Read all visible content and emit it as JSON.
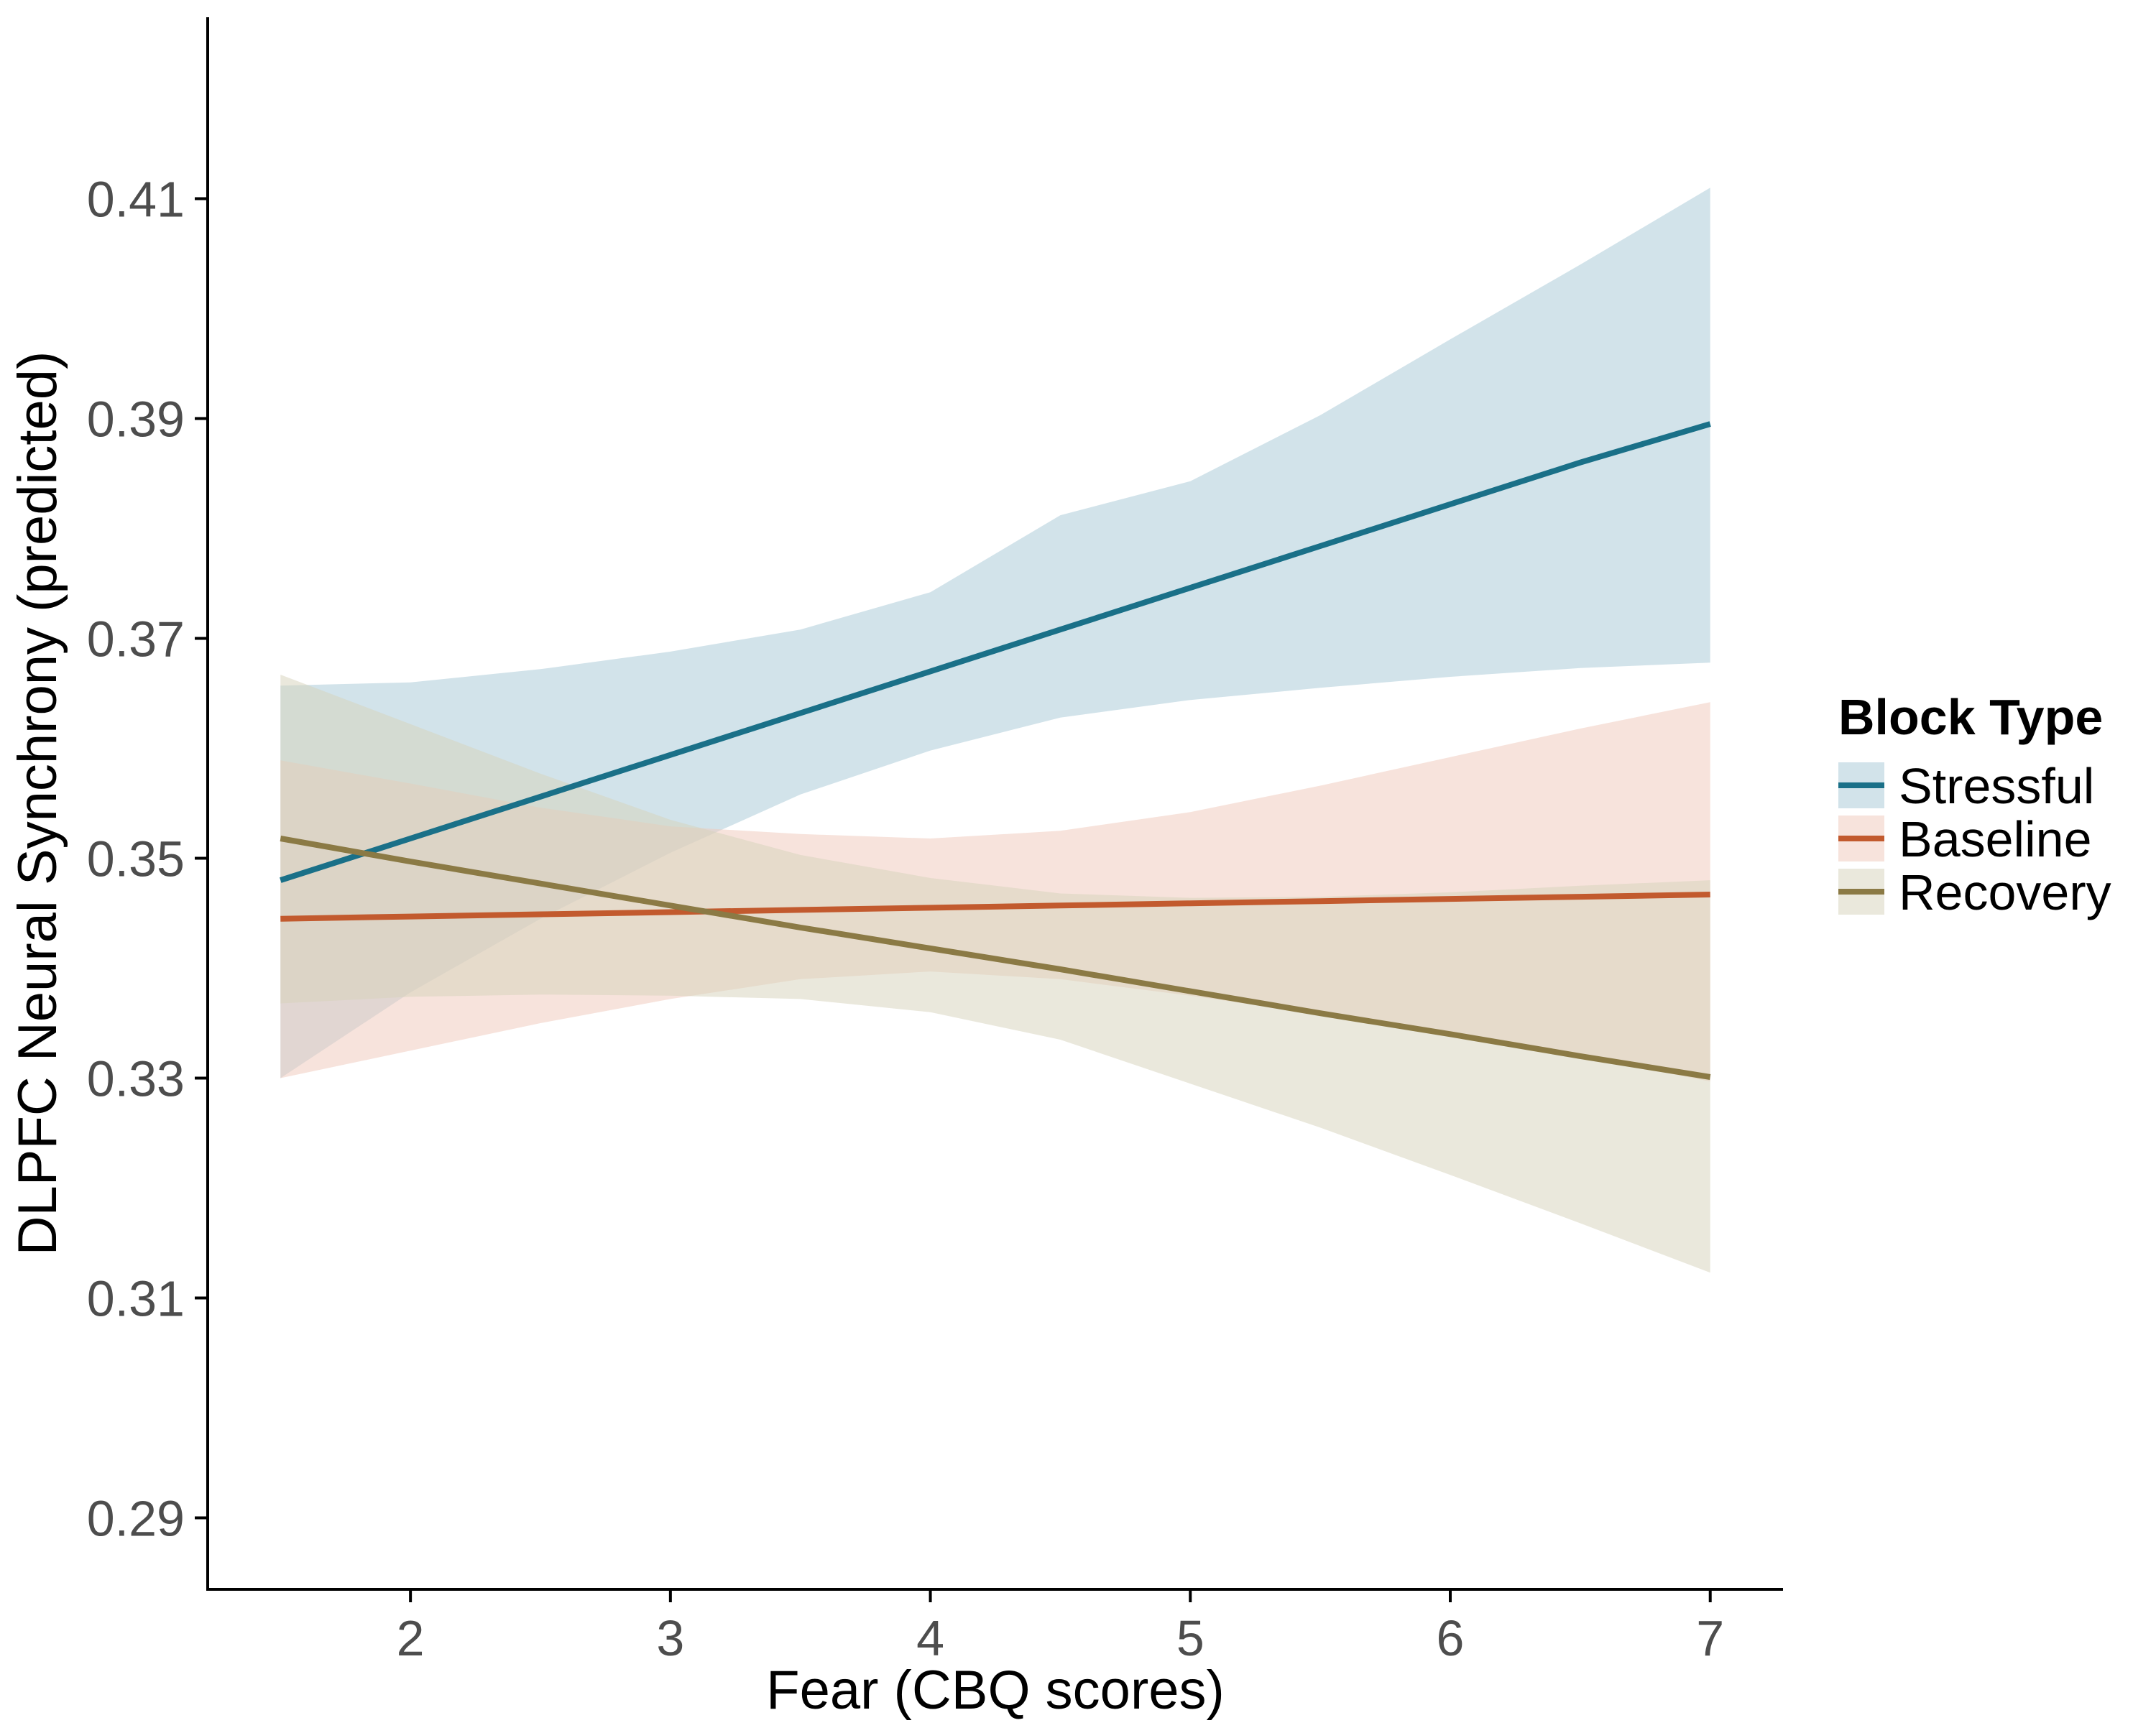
{
  "chart_data": {
    "type": "line",
    "title": "",
    "xlabel": "Fear (CBQ scores)",
    "ylabel": "DLPFC Neural Synchrony (predicted)",
    "xlim": [
      1.22,
      7.28
    ],
    "ylim": [
      0.2835,
      0.4265
    ],
    "x_ticks": [
      "2",
      "3",
      "4",
      "5",
      "6",
      "7"
    ],
    "x_tick_values": [
      2,
      3,
      4,
      5,
      6,
      7
    ],
    "y_ticks": [
      "0.29",
      "0.31",
      "0.33",
      "0.35",
      "0.37",
      "0.39",
      "0.41"
    ],
    "y_tick_values": [
      0.29,
      0.31,
      0.33,
      0.35,
      0.37,
      0.39,
      0.41
    ],
    "grid": false,
    "legend": {
      "title": "Block Type",
      "position": "right"
    },
    "series": [
      {
        "name": "Stressful",
        "color": "#1a7088",
        "band_color": "#a9c9d6",
        "x": [
          1.5,
          2.0,
          2.5,
          3.0,
          3.5,
          4.0,
          4.5,
          5.0,
          5.5,
          6.0,
          6.5,
          7.0
        ],
        "y": [
          0.348,
          0.3518,
          0.3556,
          0.3594,
          0.3632,
          0.367,
          0.3708,
          0.3746,
          0.3784,
          0.3822,
          0.386,
          0.3895
        ],
        "lower": [
          0.33,
          0.3378,
          0.3445,
          0.3505,
          0.3558,
          0.3598,
          0.3628,
          0.3644,
          0.3655,
          0.3665,
          0.3673,
          0.3678
        ],
        "upper": [
          0.3657,
          0.366,
          0.3672,
          0.3688,
          0.3708,
          0.3742,
          0.3812,
          0.3843,
          0.3903,
          0.3972,
          0.404,
          0.411
        ]
      },
      {
        "name": "Baseline",
        "color": "#c25a2e",
        "band_color": "#efc9bb",
        "x": [
          1.5,
          2.0,
          2.5,
          3.0,
          3.5,
          4.0,
          4.5,
          5.0,
          5.5,
          6.0,
          6.5,
          7.0
        ],
        "y": [
          0.3445,
          0.3447,
          0.3449,
          0.3451,
          0.3453,
          0.3455,
          0.3457,
          0.3459,
          0.3461,
          0.3463,
          0.3465,
          0.3467
        ],
        "lower": [
          0.33,
          0.3325,
          0.335,
          0.3372,
          0.339,
          0.3397,
          0.339,
          0.3375,
          0.3358,
          0.334,
          0.332,
          0.3297
        ],
        "upper": [
          0.3589,
          0.3568,
          0.3546,
          0.3529,
          0.3522,
          0.3518,
          0.3525,
          0.3542,
          0.3566,
          0.3592,
          0.3618,
          0.3642
        ]
      },
      {
        "name": "Recovery",
        "color": "#8b7a45",
        "band_color": "#d6d2bb",
        "x": [
          1.5,
          2.0,
          2.5,
          3.0,
          3.5,
          4.0,
          4.5,
          5.0,
          5.5,
          6.0,
          6.5,
          7.0
        ],
        "y": [
          0.3518,
          0.3497,
          0.3477,
          0.3457,
          0.3437,
          0.3418,
          0.3399,
          0.3379,
          0.3359,
          0.334,
          0.332,
          0.3301
        ],
        "lower": [
          0.3368,
          0.3374,
          0.3376,
          0.3375,
          0.3372,
          0.336,
          0.3335,
          0.3295,
          0.3255,
          0.3212,
          0.3168,
          0.3123
        ],
        "upper": [
          0.3667,
          0.3622,
          0.3577,
          0.3535,
          0.3503,
          0.3482,
          0.3468,
          0.3464,
          0.3465,
          0.3469,
          0.3475,
          0.348
        ]
      }
    ]
  }
}
